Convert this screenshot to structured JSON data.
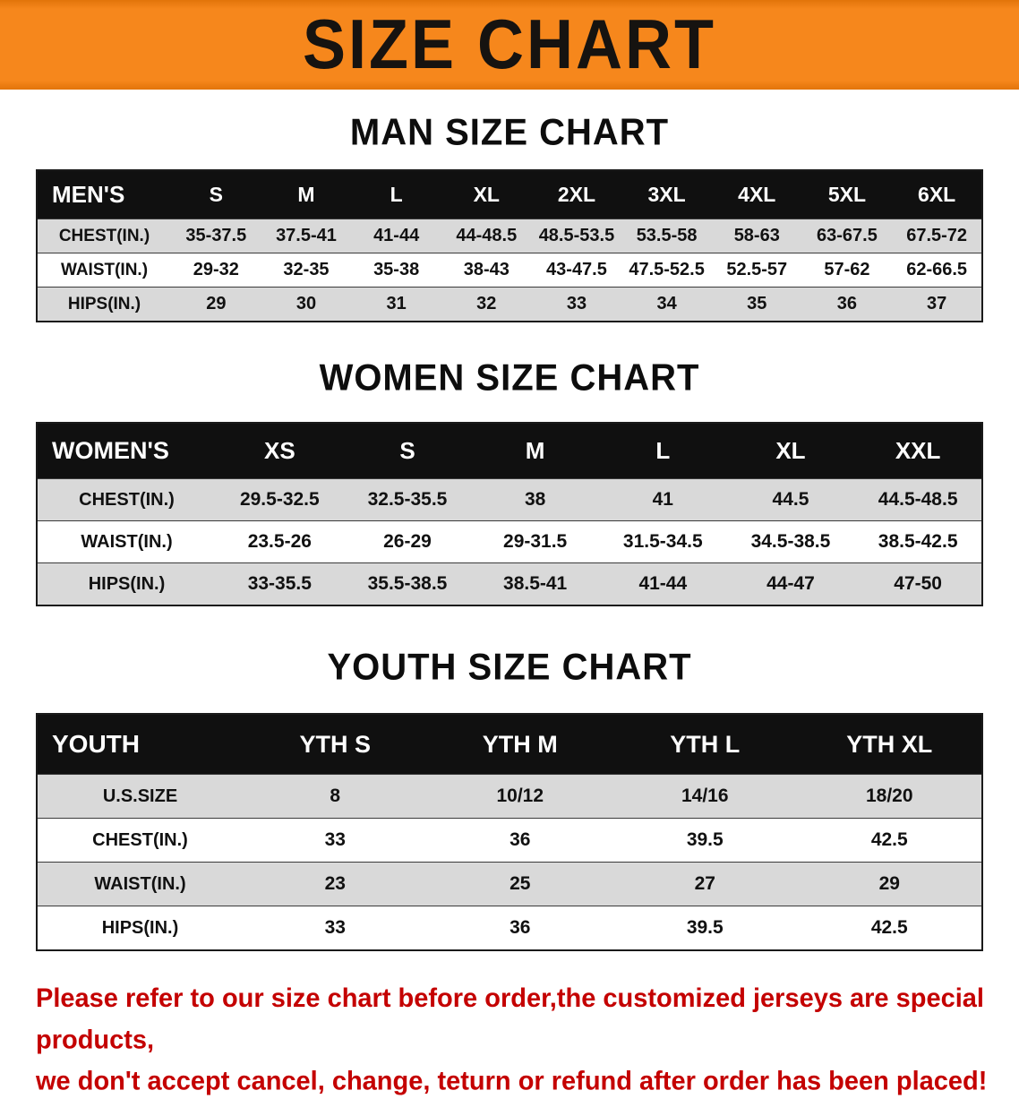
{
  "banner": {
    "title": "SIZE CHART"
  },
  "colors": {
    "banner_background": "#f6871c",
    "table_header_background": "#101010",
    "table_alt_row": "#d9d9d9",
    "disclaimer_text": "#c40000"
  },
  "sections": [
    {
      "title": "MAN SIZE CHART",
      "table": {
        "header_label": "MEN'S",
        "sizes": [
          "S",
          "M",
          "L",
          "XL",
          "2XL",
          "3XL",
          "4XL",
          "5XL",
          "6XL"
        ],
        "rows": [
          {
            "label": "CHEST(IN.)",
            "values": [
              "35-37.5",
              "37.5-41",
              "41-44",
              "44-48.5",
              "48.5-53.5",
              "53.5-58",
              "58-63",
              "63-67.5",
              "67.5-72"
            ]
          },
          {
            "label": "WAIST(IN.)",
            "values": [
              "29-32",
              "32-35",
              "35-38",
              "38-43",
              "43-47.5",
              "47.5-52.5",
              "52.5-57",
              "57-62",
              "62-66.5"
            ]
          },
          {
            "label": "HIPS(IN.)",
            "values": [
              "29",
              "30",
              "31",
              "32",
              "33",
              "34",
              "35",
              "36",
              "37"
            ]
          }
        ]
      }
    },
    {
      "title": "WOMEN SIZE CHART",
      "table": {
        "header_label": "WOMEN'S",
        "sizes": [
          "XS",
          "S",
          "M",
          "L",
          "XL",
          "XXL"
        ],
        "rows": [
          {
            "label": "CHEST(IN.)",
            "values": [
              "29.5-32.5",
              "32.5-35.5",
              "38",
              "41",
              "44.5",
              "44.5-48.5"
            ]
          },
          {
            "label": "WAIST(IN.)",
            "values": [
              "23.5-26",
              "26-29",
              "29-31.5",
              "31.5-34.5",
              "34.5-38.5",
              "38.5-42.5"
            ]
          },
          {
            "label": "HIPS(IN.)",
            "values": [
              "33-35.5",
              "35.5-38.5",
              "38.5-41",
              "41-44",
              "44-47",
              "47-50"
            ]
          }
        ]
      }
    },
    {
      "title": "YOUTH SIZE CHART",
      "table": {
        "header_label": "YOUTH",
        "sizes": [
          "YTH S",
          "YTH M",
          "YTH L",
          "YTH XL"
        ],
        "rows": [
          {
            "label": "U.S.SIZE",
            "values": [
              "8",
              "10/12",
              "14/16",
              "18/20"
            ]
          },
          {
            "label": "CHEST(IN.)",
            "values": [
              "33",
              "36",
              "39.5",
              "42.5"
            ]
          },
          {
            "label": "WAIST(IN.)",
            "values": [
              "23",
              "25",
              "27",
              "29"
            ]
          },
          {
            "label": "HIPS(IN.)",
            "values": [
              "33",
              "36",
              "39.5",
              "42.5"
            ]
          }
        ]
      }
    }
  ],
  "disclaimer": {
    "lines": [
      "Please refer to our size chart before order,the customized jerseys are special products,",
      "we don't accept cancel, change, teturn or refund after order has been placed!"
    ]
  }
}
